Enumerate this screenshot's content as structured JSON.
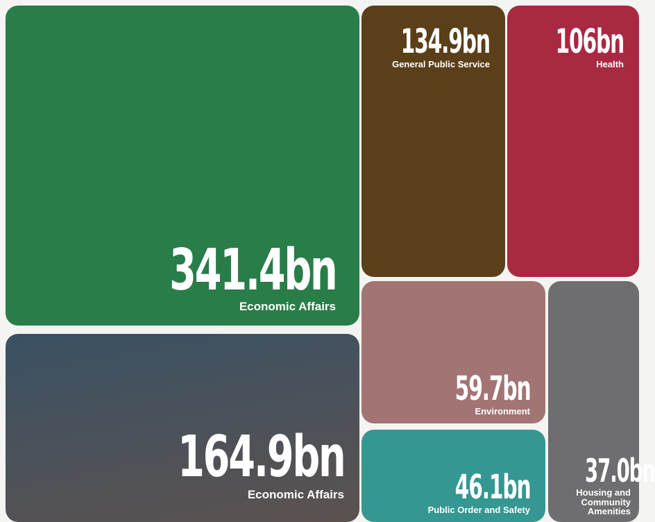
{
  "chart_data": {
    "type": "treemap",
    "tiles": [
      {
        "id": "t-econ1",
        "value": 341.4,
        "value_label": "341.4bn",
        "label": "Economic Affairs",
        "color": "#297d48"
      },
      {
        "id": "t-econ2",
        "value": 164.9,
        "value_label": "164.9bn",
        "label": "Economic Affairs",
        "color": "#4f5159",
        "gradient": [
          "#3a5163",
          "#5c5250"
        ]
      },
      {
        "id": "t-gps",
        "value": 134.9,
        "value_label": "134.9bn",
        "label": "General Public Service",
        "color": "#5a3f18"
      },
      {
        "id": "t-health",
        "value": 106,
        "value_label": "106bn",
        "label": "Health",
        "color": "#a82942"
      },
      {
        "id": "t-env",
        "value": 59.7,
        "value_label": "59.7bn",
        "label": "Environment",
        "color": "#a37474"
      },
      {
        "id": "t-pos",
        "value": 46.1,
        "value_label": "46.1bn",
        "label": "Public Order and Safety",
        "color": "#359791"
      },
      {
        "id": "t-hca",
        "value": 37.0,
        "value_label": "37.0bn",
        "label": "Housing and Community Amenities",
        "color": "#6e6e70"
      }
    ]
  }
}
